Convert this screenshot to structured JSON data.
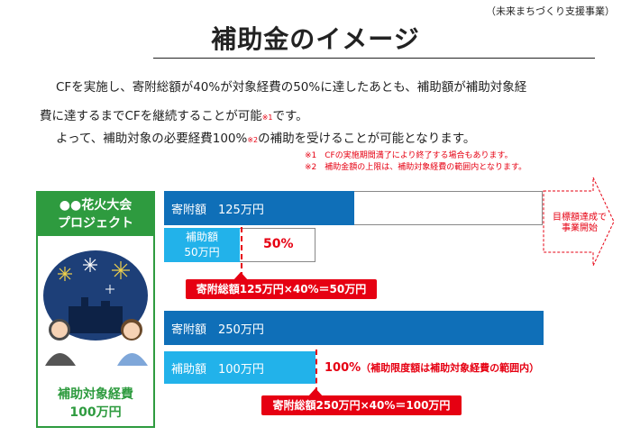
{
  "header": {
    "subtitle": "（未来まちづくり支援事業）",
    "title": "補助金のイメージ"
  },
  "description": {
    "line1": "CFを実施し、寄附総額が40%が対象経費の50%に達したあとも、補助額が補助対象経",
    "line2_a": "費に達するまでCFを継続することが可能",
    "line2_sup": "※1",
    "line2_b": "です。",
    "line3_a": "よって、補助対象の必要経費100%",
    "line3_sup": "※2",
    "line3_b": "の補助を受けることが可能となります。",
    "note1": "※1　CFの実施期間満了により終了する場合もあります。",
    "note2": "※2　補助金額の上限は、補助対象経費の範囲内となります。"
  },
  "project": {
    "name_line1": "●●花火大会",
    "name_line2": "プロジェクト",
    "cost_line1": "補助対象経費",
    "cost_line2": "100万円"
  },
  "scenario1": {
    "donation_label": "寄附額　125万円",
    "subsidy_line1": "補助額",
    "subsidy_line2": "50万円",
    "percent": "50%",
    "calc": "寄附総額125万円×40%＝50万円",
    "goal_line1": "目標額達成で",
    "goal_line2": "事業開始"
  },
  "scenario2": {
    "donation_label": "寄附額　250万円",
    "subsidy_label": "補助額　100万円",
    "percent": "100%",
    "percent_note": "（補助限度額は補助対象経費の範囲内）",
    "calc": "寄附総額250万円×40%＝100万円"
  },
  "colors": {
    "dark_blue": "#0f6fb8",
    "light_blue": "#22b2ea",
    "green": "#2e9b3f",
    "red": "#e60012"
  }
}
